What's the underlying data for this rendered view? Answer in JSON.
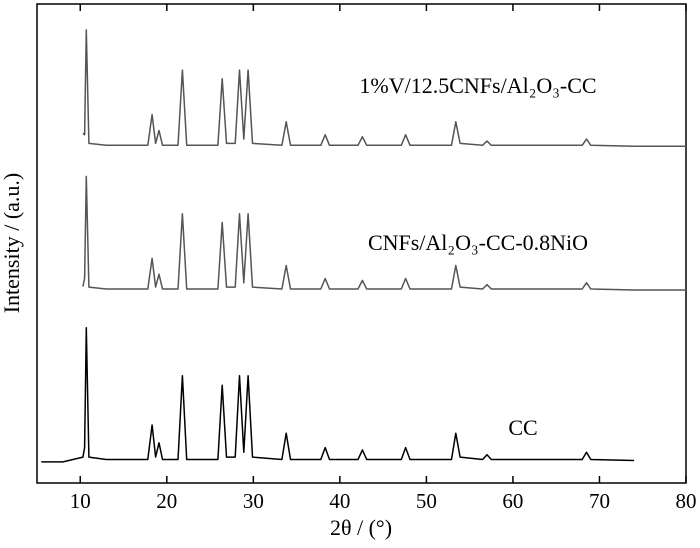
{
  "chart_data": {
    "type": "line",
    "x_label": "2θ / (°)",
    "y_label": "Intensity / (a.u.)",
    "xlim": [
      5,
      80
    ],
    "xticks": [
      10,
      20,
      30,
      40,
      50,
      60,
      70,
      80
    ],
    "ylim": [
      0,
      100
    ],
    "x": [
      5.5,
      8,
      10.3,
      10.5,
      10.7,
      11,
      13,
      15,
      17.8,
      18.3,
      18.7,
      19.1,
      19.5,
      21.3,
      21.8,
      22.3,
      25.9,
      26.4,
      26.9,
      27.9,
      28.4,
      28.9,
      29.4,
      29.9,
      33.3,
      33.8,
      34.3,
      37.8,
      38.3,
      38.8,
      42.1,
      42.6,
      43.1,
      47.1,
      47.6,
      48.1,
      52.9,
      53.4,
      53.9,
      56.5,
      57,
      57.5,
      68,
      68.5,
      69,
      74,
      80
    ],
    "series": [
      {
        "name": "1%V/12.5CNFs/Al₂O₃-CC",
        "color": "#555555",
        "values": [
          null,
          null,
          73,
          72.7,
          94.6,
          70.9,
          70.5,
          70.5,
          70.5,
          76.9,
          70.9,
          73.6,
          70.5,
          70.5,
          86.2,
          70.5,
          70.5,
          84.4,
          70.9,
          70.9,
          86.2,
          71.8,
          86.2,
          70.9,
          70.5,
          75.4,
          70.5,
          70.5,
          72.7,
          70.5,
          70.5,
          72.3,
          70.5,
          70.5,
          72.7,
          70.5,
          70.5,
          75.4,
          70.9,
          70.5,
          71.4,
          70.5,
          70.5,
          71.8,
          70.5,
          70.3,
          70.3
        ]
      },
      {
        "name": "CNFs/Al₂O₃-CC-0.8NiO",
        "color": "#555555",
        "values": [
          null,
          null,
          41,
          42.7,
          64,
          40.9,
          40.5,
          40.5,
          40.5,
          46.9,
          40.9,
          43.6,
          40.5,
          40.5,
          56.2,
          40.5,
          40.5,
          54.4,
          40.9,
          40.9,
          56.2,
          41.8,
          56.2,
          40.9,
          40.5,
          45.4,
          40.5,
          40.5,
          42.7,
          40.5,
          40.5,
          42.3,
          40.5,
          40.5,
          42.7,
          40.5,
          40.5,
          45.4,
          40.9,
          40.5,
          41.4,
          40.5,
          40.5,
          41.8,
          40.5,
          40.3,
          40.3
        ]
      },
      {
        "name": "CC",
        "color": "#000000",
        "values": [
          4.4,
          4.4,
          5.4,
          7.4,
          32.4,
          5.4,
          4.9,
          4.9,
          4.9,
          12.1,
          5.4,
          8.4,
          4.9,
          4.9,
          22.4,
          4.9,
          4.9,
          20.4,
          5.4,
          5.4,
          22.4,
          6.4,
          22.4,
          5.4,
          4.9,
          10.4,
          4.9,
          4.9,
          7.4,
          4.9,
          4.9,
          6.9,
          4.9,
          4.9,
          7.4,
          4.9,
          4.9,
          10.4,
          5.4,
          4.9,
          5.9,
          4.9,
          4.9,
          6.4,
          4.9,
          4.7,
          null
        ]
      }
    ]
  }
}
